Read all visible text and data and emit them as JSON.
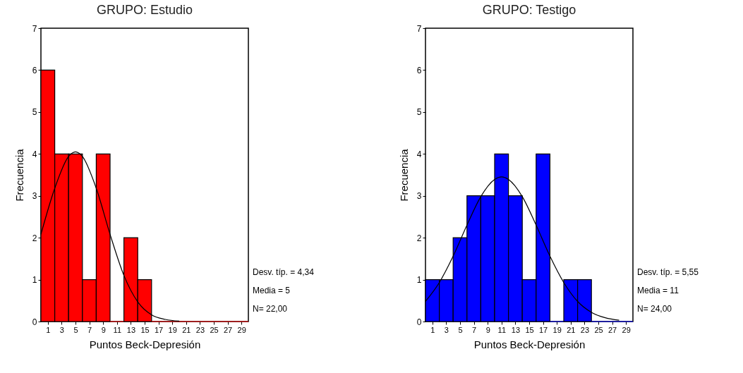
{
  "chart_data": [
    {
      "type": "histogram",
      "title": "GRUPO: Estudio",
      "xlabel": "Puntos Beck-Depresión",
      "ylabel": "Frecuencia",
      "color": "#ff0000",
      "bins": [
        0,
        2,
        4,
        6,
        8,
        10,
        12,
        14,
        16,
        18,
        20,
        22,
        24,
        26,
        28,
        30
      ],
      "values": [
        6,
        4,
        4,
        1,
        4,
        0,
        2,
        1,
        0,
        0,
        0,
        0,
        0,
        0,
        0
      ],
      "series": [
        {
          "type": "line",
          "color": "#000000",
          "x": [
            0,
            2,
            4,
            5,
            6,
            8,
            10,
            12,
            14,
            16,
            18,
            20
          ],
          "values": [
            2.08,
            3.18,
            3.94,
            4.05,
            3.94,
            3.18,
            2.08,
            1.1,
            0.47,
            0.16,
            0.05,
            0.01
          ]
        }
      ],
      "xlim": [
        0,
        30
      ],
      "xticks": [
        1,
        3,
        5,
        7,
        9,
        11,
        13,
        15,
        17,
        19,
        21,
        23,
        25,
        27,
        29
      ],
      "ylim": [
        0,
        7
      ],
      "yticks": [
        0,
        1,
        2,
        3,
        4,
        5,
        6,
        7
      ],
      "annotations": [
        "Desv. típ. = 4,34",
        "Media = 5",
        "N= 22,00"
      ]
    },
    {
      "type": "histogram",
      "title": "GRUPO: Testigo",
      "xlabel": "Puntos Beck-Depresión",
      "ylabel": "Frecuencia",
      "color": "#0000ff",
      "bins": [
        0,
        2,
        4,
        6,
        8,
        10,
        12,
        14,
        16,
        18,
        20,
        22,
        24,
        26,
        28,
        30
      ],
      "values": [
        1,
        1,
        2,
        3,
        3,
        4,
        3,
        1,
        4,
        0,
        1,
        1,
        0,
        0,
        0
      ],
      "series": [
        {
          "type": "line",
          "color": "#000000",
          "x": [
            0,
            2,
            4,
            6,
            8,
            10,
            11,
            12,
            14,
            16,
            18,
            20,
            22,
            24,
            26,
            28
          ],
          "values": [
            0.48,
            0.93,
            1.56,
            2.3,
            2.98,
            3.39,
            3.45,
            3.39,
            2.98,
            2.3,
            1.56,
            0.93,
            0.48,
            0.22,
            0.09,
            0.03
          ]
        }
      ],
      "xlim": [
        0,
        30
      ],
      "xticks": [
        1,
        3,
        5,
        7,
        9,
        11,
        13,
        15,
        17,
        19,
        21,
        23,
        25,
        27,
        29
      ],
      "ylim": [
        0,
        7
      ],
      "yticks": [
        0,
        1,
        2,
        3,
        4,
        5,
        6,
        7
      ],
      "annotations": [
        "Desv. típ. = 5,55",
        "Media = 11",
        "N= 24,00"
      ]
    }
  ]
}
